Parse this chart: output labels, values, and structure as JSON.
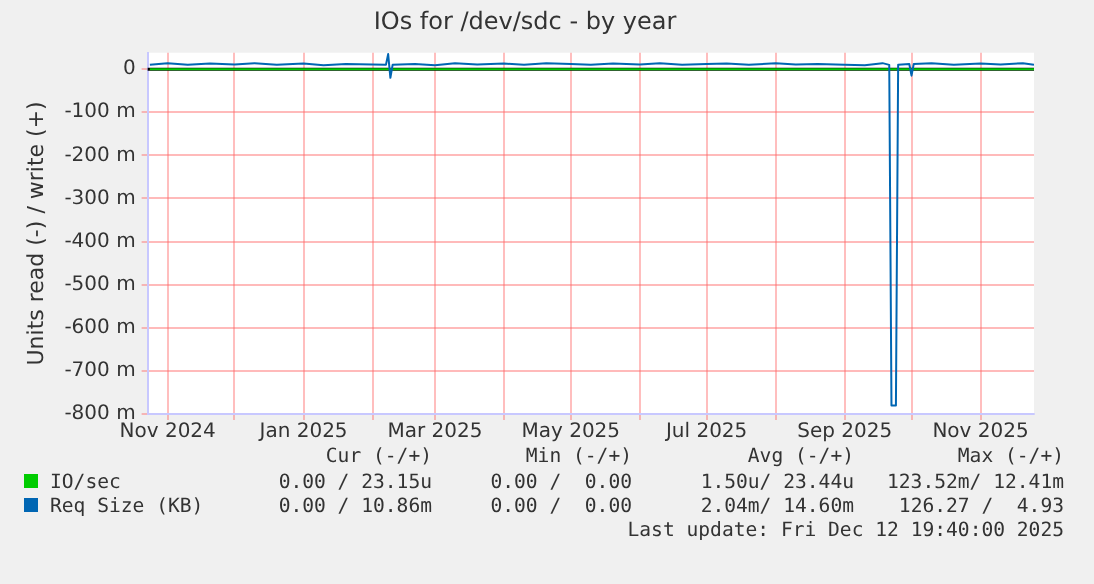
{
  "chart_data": {
    "type": "line",
    "title": "IOs for /dev/sdc - by year",
    "ylabel": "Units read (-) / write (+)",
    "xlim": [
      "2024-10-23",
      "2025-11-25"
    ],
    "ylim": [
      -800,
      38
    ],
    "xticks": [
      {
        "value": "2024-11-01",
        "label": "Nov 2024"
      },
      {
        "value": "2024-12-01",
        "label": null
      },
      {
        "value": "2025-01-01",
        "label": "Jan 2025"
      },
      {
        "value": "2025-02-01",
        "label": null
      },
      {
        "value": "2025-03-01",
        "label": "Mar 2025"
      },
      {
        "value": "2025-04-01",
        "label": null
      },
      {
        "value": "2025-05-01",
        "label": "May 2025"
      },
      {
        "value": "2025-06-01",
        "label": null
      },
      {
        "value": "2025-07-01",
        "label": "Jul 2025"
      },
      {
        "value": "2025-08-01",
        "label": null
      },
      {
        "value": "2025-09-01",
        "label": "Sep 2025"
      },
      {
        "value": "2025-10-01",
        "label": null
      },
      {
        "value": "2025-11-01",
        "label": "Nov 2025"
      }
    ],
    "yticks": [
      {
        "value": -800,
        "label": "-800 m"
      },
      {
        "value": -700,
        "label": "-700 m"
      },
      {
        "value": -600,
        "label": "-600 m"
      },
      {
        "value": -500,
        "label": "-500 m"
      },
      {
        "value": -400,
        "label": "-400 m"
      },
      {
        "value": -300,
        "label": "-300 m"
      },
      {
        "value": -200,
        "label": "-200 m"
      },
      {
        "value": -100,
        "label": "-100 m"
      },
      0
    ],
    "grid": true,
    "legend": "bottom left",
    "ref_lines": [
      {
        "axis": "y",
        "value": 0,
        "color": "#000000"
      }
    ],
    "x": [
      "2024-10-24",
      "2024-11-01",
      "2024-11-10",
      "2024-11-20",
      "2024-12-01",
      "2024-12-10",
      "2024-12-20",
      "2025-01-01",
      "2025-01-10",
      "2025-01-20",
      "2025-02-01",
      "2025-02-07",
      "2025-02-08",
      "2025-02-09",
      "2025-02-10",
      "2025-02-20",
      "2025-03-01",
      "2025-03-10",
      "2025-03-20",
      "2025-04-01",
      "2025-04-10",
      "2025-04-20",
      "2025-05-01",
      "2025-05-10",
      "2025-05-20",
      "2025-06-01",
      "2025-06-10",
      "2025-06-20",
      "2025-07-01",
      "2025-07-10",
      "2025-07-20",
      "2025-08-01",
      "2025-08-10",
      "2025-08-20",
      "2025-09-01",
      "2025-09-10",
      "2025-09-18",
      "2025-09-21",
      "2025-09-22",
      "2025-09-24",
      "2025-09-25",
      "2025-09-30",
      "2025-10-01",
      "2025-10-02",
      "2025-10-10",
      "2025-10-20",
      "2025-11-01",
      "2025-11-10",
      "2025-11-20",
      "2025-11-25"
    ],
    "series": [
      {
        "name": "IO/sec",
        "color": "#00cc00",
        "values": [
          0,
          0,
          0,
          0,
          0,
          0,
          0,
          0,
          0,
          0,
          0,
          0,
          0,
          0,
          0,
          0,
          0,
          0,
          0,
          0,
          0,
          0,
          0,
          0,
          0,
          0,
          0,
          0,
          0,
          0,
          0,
          0,
          0,
          0,
          0,
          0,
          0,
          0,
          0,
          0,
          0,
          0,
          0,
          0,
          0,
          0,
          0,
          0,
          0,
          0
        ]
      },
      {
        "name": "Req Size (KB)",
        "color": "#0066b3",
        "values": [
          10,
          14,
          10,
          13,
          11,
          14,
          10,
          13,
          9,
          12,
          11,
          10,
          35,
          -20,
          10,
          12,
          9,
          14,
          11,
          13,
          10,
          14,
          12,
          10,
          13,
          11,
          14,
          10,
          12,
          13,
          10,
          14,
          11,
          12,
          10,
          9,
          14,
          10,
          -780,
          -780,
          10,
          12,
          -15,
          12,
          14,
          10,
          13,
          11,
          14,
          10
        ]
      }
    ],
    "annotations": [
      "Cur (-/+)",
      "Min (-/+)",
      "Avg (-/+)",
      "Max (-/+)",
      "0.00 / 23.15u",
      "0.00 /  0.00",
      "1.50u/ 23.44u",
      "123.52m/ 12.41m",
      "0.00 / 10.86m",
      "0.00 /  0.00",
      "2.04m/ 14.60m",
      "126.27 /  4.93",
      "Last update: Fri Dec 12 19:40:00 2025"
    ]
  }
}
